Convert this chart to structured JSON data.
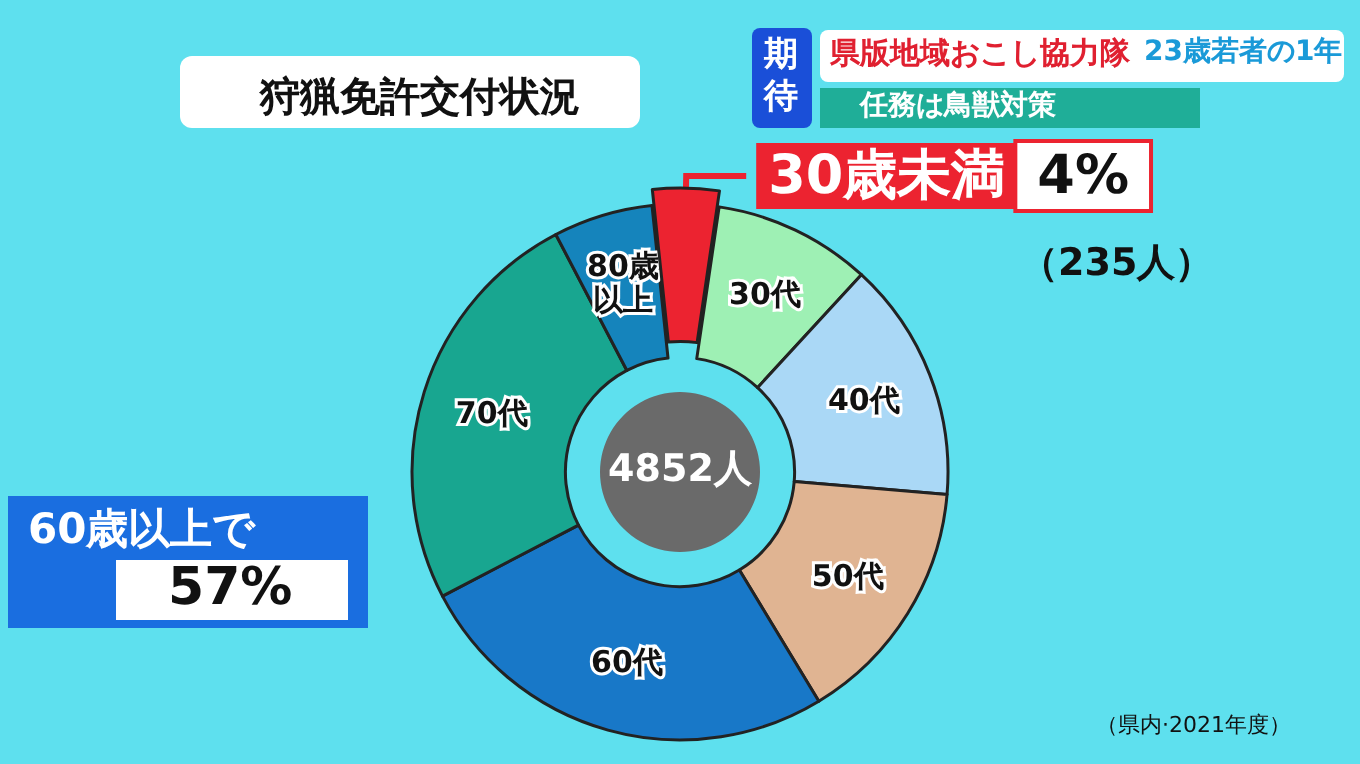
{
  "chart_data": {
    "type": "donut",
    "title": "狩猟免許交付状況",
    "categories": [
      "30歳未満",
      "30代",
      "40代",
      "50代",
      "60代",
      "70代",
      "80歳以上"
    ],
    "values": [
      4,
      9.5,
      14.5,
      15,
      26,
      25,
      6
    ],
    "colors": [
      "#ec2330",
      "#9ef0b4",
      "#aad8f6",
      "#e0b492",
      "#1878c8",
      "#18a690",
      "#1584bc"
    ],
    "value_labels": [
      "4%",
      null,
      null,
      null,
      null,
      null,
      null
    ],
    "annotations": [
      "期待",
      "県版地域おこし協力隊",
      "23歳若者の1年",
      "任務は鳥獣対策",
      "（235人）",
      "4852人",
      "60歳以上で",
      "57%",
      "（県内·2021年度）"
    ]
  }
}
